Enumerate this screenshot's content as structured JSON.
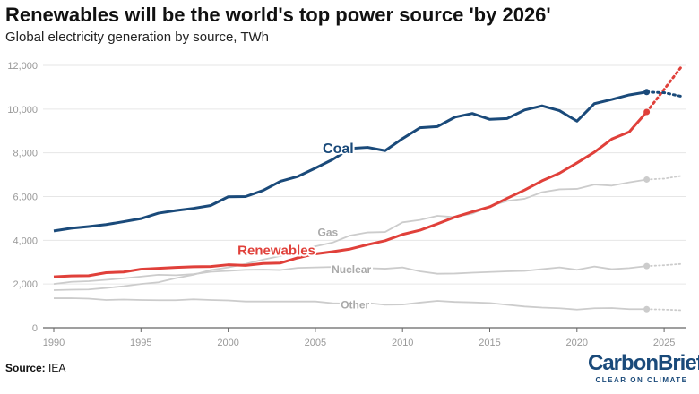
{
  "title": "Renewables will be the world's top power source 'by 2026'",
  "subtitle": "Global electricity generation by source, TWh",
  "source_label": "Source:",
  "source_value": "IEA",
  "logo": {
    "name": "CarbonBrief",
    "tagline": "CLEAR ON CLIMATE"
  },
  "chart_data": {
    "type": "line",
    "title": "Renewables will be the world's top power source 'by 2026'",
    "subtitle": "Global electricity generation by source, TWh",
    "xlim": [
      1990,
      2026
    ],
    "ylim": [
      0,
      12000
    ],
    "x_ticks": [
      "1990",
      "1995",
      "2000",
      "2005",
      "2010",
      "2015",
      "2020",
      "2025"
    ],
    "y_ticks": [
      "0",
      "2,000",
      "4,000",
      "6,000",
      "8,000",
      "10,000",
      "12,000"
    ],
    "grid": true,
    "forecast_from": 2024,
    "x": [
      1990,
      1991,
      1992,
      1993,
      1994,
      1995,
      1996,
      1997,
      1998,
      1999,
      2000,
      2001,
      2002,
      2003,
      2004,
      2005,
      2006,
      2007,
      2008,
      2009,
      2010,
      2011,
      2012,
      2013,
      2014,
      2015,
      2016,
      2017,
      2018,
      2019,
      2020,
      2021,
      2022,
      2023,
      2024,
      2025,
      2026
    ],
    "series": [
      {
        "name": "Other",
        "color": "#cccccc",
        "values": [
          1350,
          1350,
          1330,
          1270,
          1290,
          1270,
          1260,
          1260,
          1300,
          1270,
          1250,
          1200,
          1200,
          1200,
          1200,
          1200,
          1120,
          1100,
          1130,
          1050,
          1060,
          1150,
          1230,
          1180,
          1160,
          1130,
          1050,
          970,
          920,
          890,
          830,
          890,
          900,
          850,
          850,
          830,
          800
        ]
      },
      {
        "name": "Nuclear",
        "color": "#cccccc",
        "values": [
          2000,
          2100,
          2130,
          2190,
          2260,
          2340,
          2420,
          2400,
          2450,
          2560,
          2600,
          2650,
          2660,
          2640,
          2740,
          2760,
          2780,
          2720,
          2730,
          2700,
          2760,
          2580,
          2470,
          2480,
          2520,
          2550,
          2580,
          2600,
          2680,
          2760,
          2650,
          2800,
          2680,
          2730,
          2820,
          2860,
          2920
        ]
      },
      {
        "name": "Gas",
        "color": "#cccccc",
        "values": [
          1720,
          1740,
          1750,
          1820,
          1900,
          2000,
          2080,
          2270,
          2420,
          2640,
          2760,
          2920,
          3120,
          3280,
          3540,
          3720,
          3900,
          4220,
          4360,
          4380,
          4820,
          4930,
          5120,
          5060,
          5220,
          5560,
          5800,
          5900,
          6200,
          6330,
          6350,
          6550,
          6500,
          6650,
          6780,
          6820,
          6950
        ]
      },
      {
        "name": "Renewables",
        "color": "#e0403a",
        "values": [
          2330,
          2370,
          2380,
          2520,
          2550,
          2680,
          2720,
          2760,
          2790,
          2800,
          2880,
          2850,
          2940,
          2960,
          3200,
          3380,
          3480,
          3600,
          3800,
          3980,
          4270,
          4460,
          4750,
          5060,
          5300,
          5530,
          5920,
          6300,
          6720,
          7070,
          7540,
          8030,
          8630,
          8960,
          9870,
          10900,
          11950
        ]
      },
      {
        "name": "Coal",
        "color": "#1a4a7a",
        "values": [
          4430,
          4550,
          4630,
          4720,
          4850,
          4990,
          5240,
          5360,
          5460,
          5590,
          5990,
          6000,
          6280,
          6700,
          6920,
          7300,
          7700,
          8200,
          8250,
          8100,
          8650,
          9150,
          9200,
          9630,
          9800,
          9530,
          9570,
          9960,
          10150,
          9930,
          9450,
          10250,
          10440,
          10650,
          10780,
          10750,
          10580
        ]
      }
    ]
  }
}
